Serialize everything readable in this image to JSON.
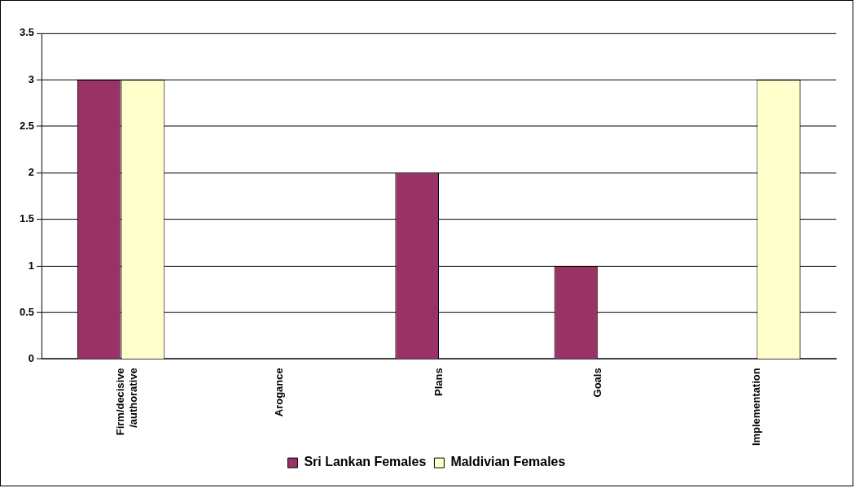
{
  "chart_data": {
    "type": "bar",
    "categories": [
      "Firm/decisive /authorative",
      "Arogance",
      "Plans",
      "Goals",
      "Implementation"
    ],
    "series": [
      {
        "name": "Sri Lankan Females",
        "color": "#993366",
        "values": [
          3,
          0,
          2,
          1,
          0
        ]
      },
      {
        "name": "Maldivian Females",
        "color": "#ffffcc",
        "values": [
          3,
          0,
          0,
          0,
          3
        ]
      }
    ],
    "ylim": [
      0,
      3.5
    ],
    "yticks": [
      0,
      0.5,
      1,
      1.5,
      2,
      2.5,
      3,
      3.5
    ],
    "grid": "y",
    "legend": "bottom"
  }
}
